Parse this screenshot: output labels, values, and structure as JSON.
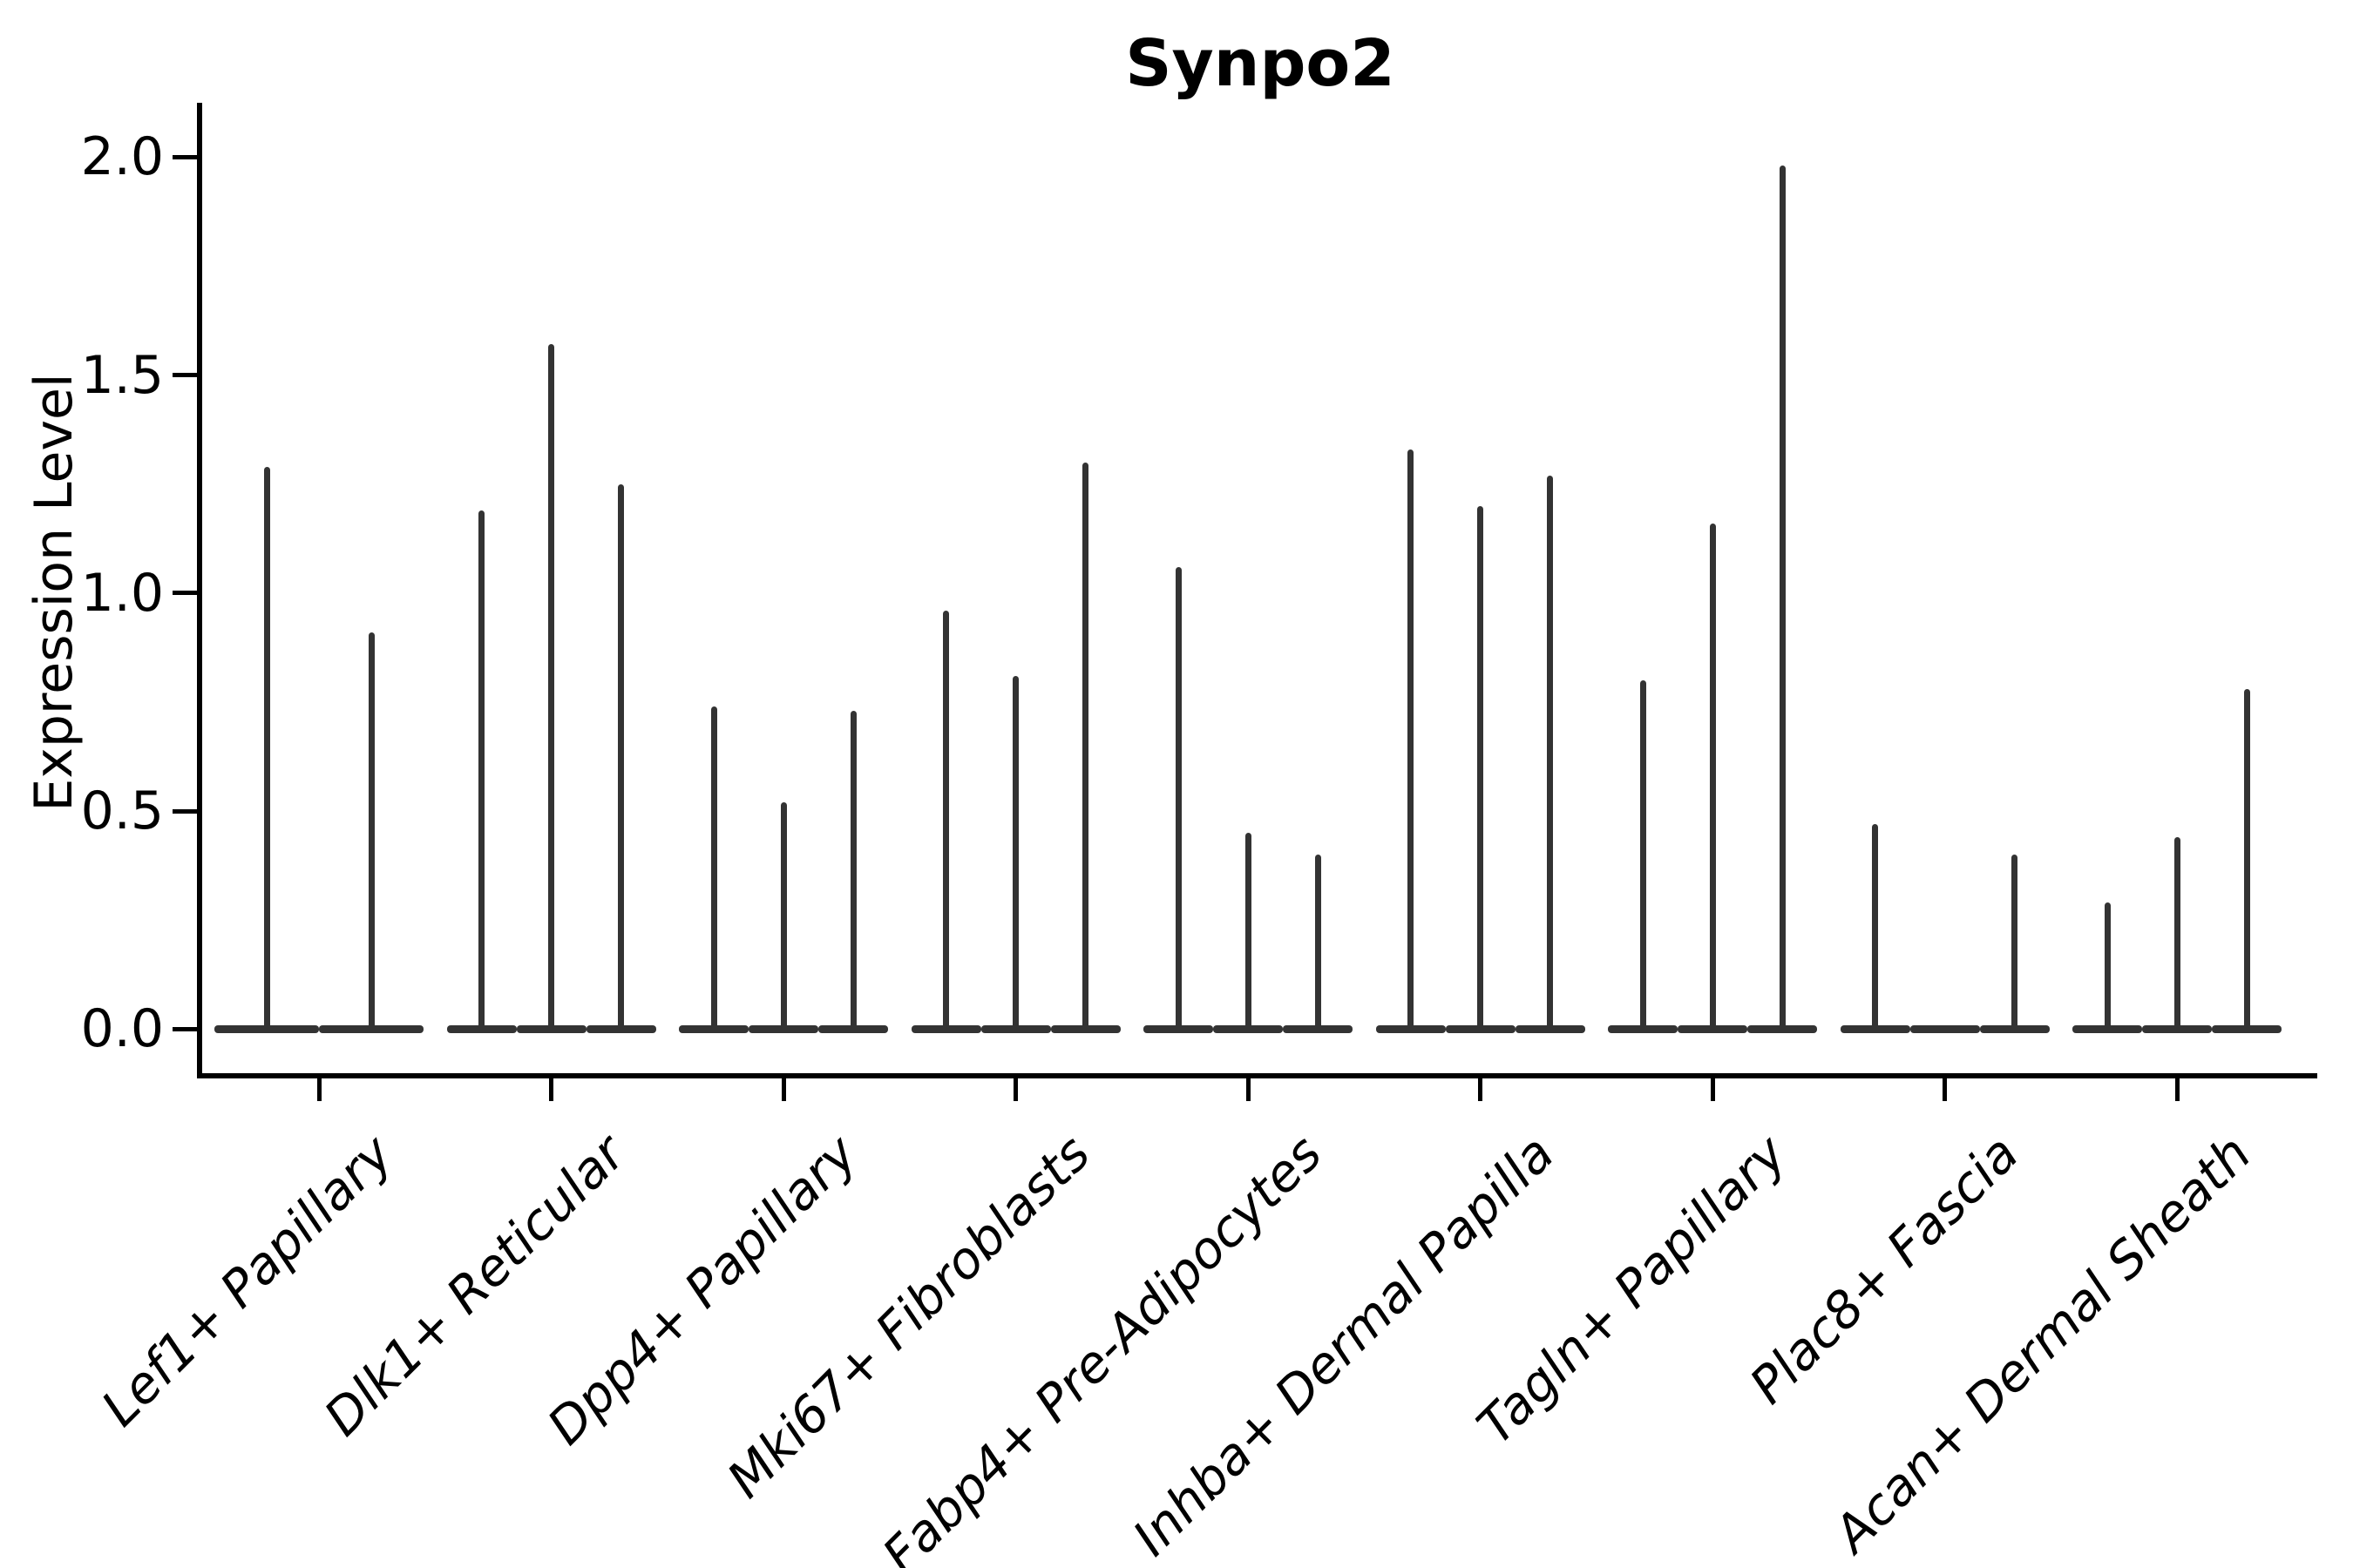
{
  "chart_data": {
    "type": "violin",
    "title": "Synpo2",
    "xlabel": "",
    "ylabel": "Expression Level",
    "yticks": [
      0.0,
      0.5,
      1.0,
      1.5,
      2.0
    ],
    "ytick_labels": [
      "0.0",
      "0.5",
      "1.0",
      "1.5",
      "2.0"
    ],
    "ylim": [
      0.0,
      2.05
    ],
    "grid": false,
    "legend": "none",
    "background_color": "#ffffff",
    "violin_color": "#333333",
    "axis_color": "#000000",
    "description": "Thin violins: expression density concentrated at 0 with a narrow spike up to each violin's maximum expression value",
    "groups": [
      {
        "label": "Lef1+ Papillary",
        "violin_max": [
          1.29,
          0.91
        ]
      },
      {
        "label": "Dlk1+ Reticular",
        "violin_max": [
          1.19,
          1.57,
          1.25
        ]
      },
      {
        "label": "Dpp4+ Papillary",
        "violin_max": [
          0.74,
          0.52,
          0.73
        ]
      },
      {
        "label": "Mki67+ Fibroblasts",
        "violin_max": [
          0.96,
          0.81,
          1.3
        ]
      },
      {
        "label": "Fabp4+ Pre-Adipocytes",
        "violin_max": [
          1.06,
          0.45,
          0.4
        ]
      },
      {
        "label": "Inhba+ Dermal Papilla",
        "violin_max": [
          1.33,
          1.2,
          1.27
        ]
      },
      {
        "label": "Tagln+ Papillary",
        "violin_max": [
          0.8,
          1.16,
          1.98
        ]
      },
      {
        "label": "Plac8+ Fascia",
        "violin_max": [
          0.47,
          0.0,
          0.4
        ]
      },
      {
        "label": "Acan+ Dermal Sheath",
        "violin_max": [
          0.29,
          0.44,
          0.78
        ]
      }
    ]
  }
}
